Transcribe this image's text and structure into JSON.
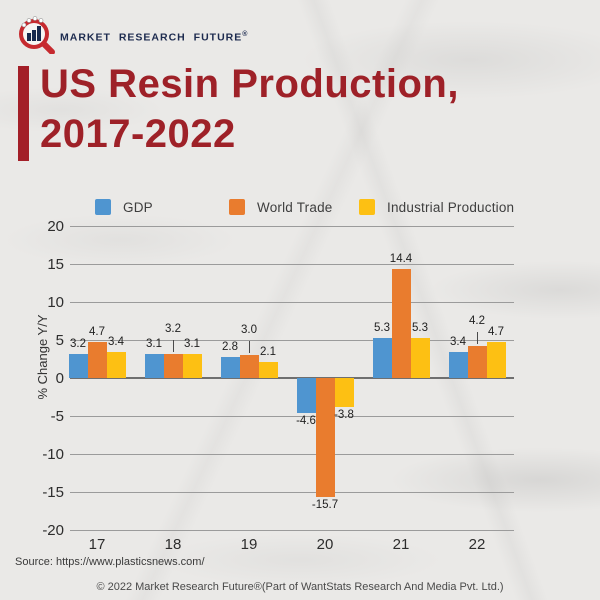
{
  "logo": {
    "brand": "MARKET RESEARCH FUTURE",
    "reg_mark": "®"
  },
  "title": {
    "line1": "US Resin Production,",
    "line2": "2017-2022"
  },
  "chart_data": {
    "type": "bar",
    "title": "US Resin Production, 2017-2022",
    "categories": [
      "17",
      "18",
      "19",
      "20",
      "21",
      "22"
    ],
    "series": [
      {
        "name": "GDP",
        "color": "#4f95d0",
        "values": [
          3.2,
          3.1,
          2.8,
          -4.6,
          5.3,
          3.4
        ]
      },
      {
        "name": "World Trade",
        "color": "#e97c2e",
        "values": [
          4.7,
          3.2,
          3.0,
          -15.7,
          14.4,
          4.2
        ]
      },
      {
        "name": "Industrial Production",
        "color": "#fdc013",
        "values": [
          3.4,
          3.1,
          2.1,
          -3.8,
          5.3,
          4.7
        ]
      }
    ],
    "xlabel": "",
    "ylabel": "% Change Y/Y",
    "ylim": [
      -20,
      20
    ],
    "ytick_step": 5,
    "grid": true,
    "legend_position": "top",
    "data_labels": true,
    "raised_labels": [
      [
        1,
        1
      ],
      [
        2,
        1
      ],
      [
        5,
        1
      ]
    ]
  },
  "footer": {
    "source": "Source: https://www.plasticsnews.com/",
    "copyright": "© 2022 Market Research Future®(Part of WantStats Research And Media Pvt. Ltd.)"
  }
}
